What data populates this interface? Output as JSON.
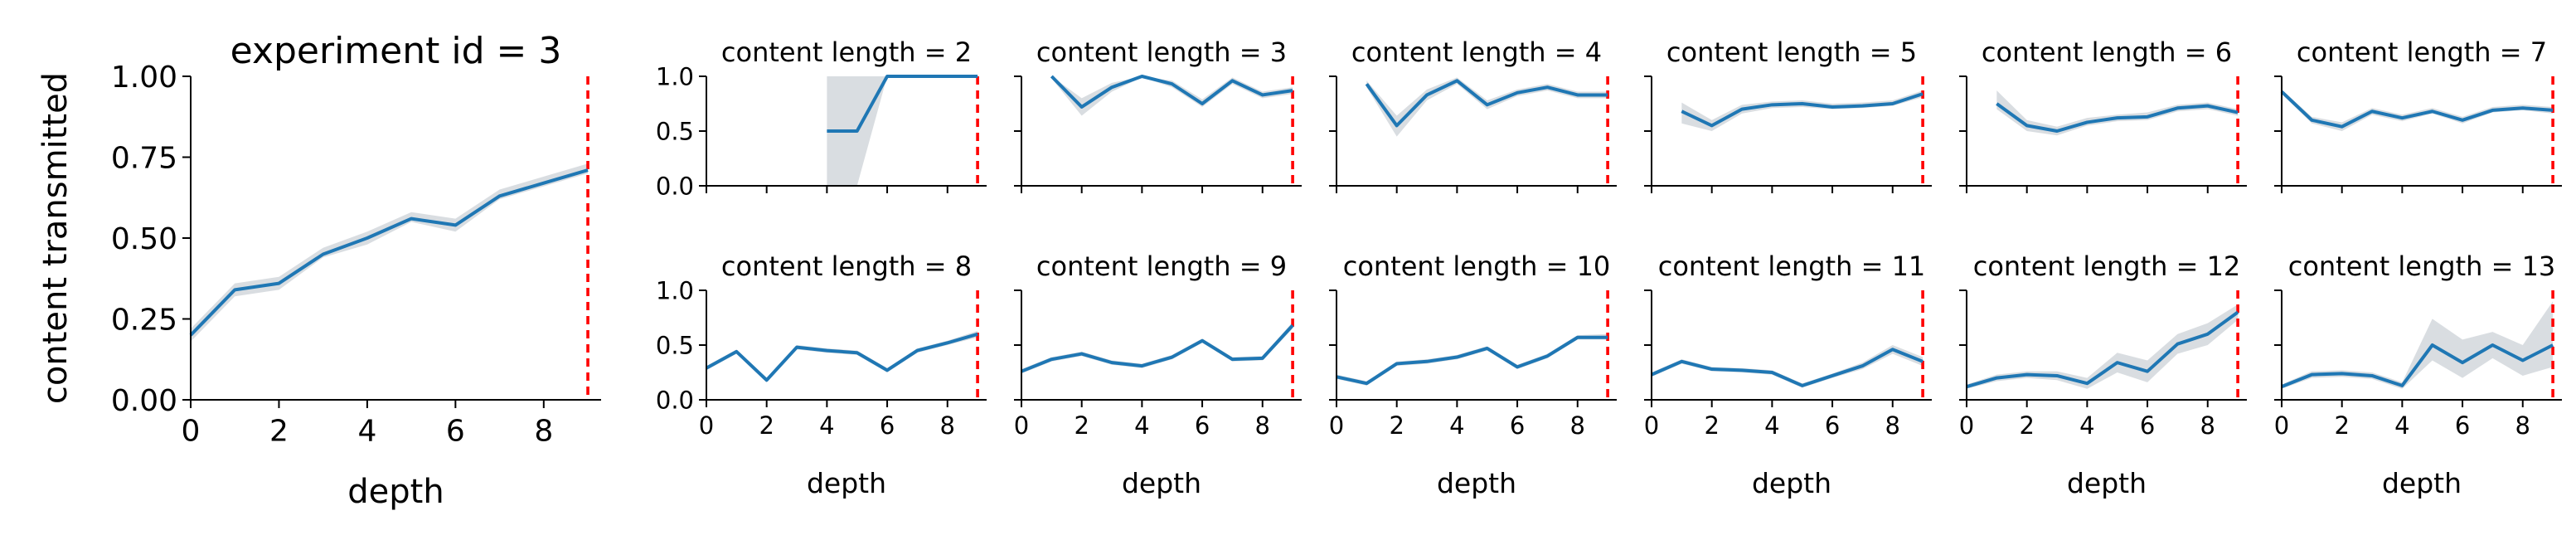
{
  "chart_data": [
    {
      "id": "main",
      "type": "line",
      "title": "experiment id = 3",
      "xlabel": "depth",
      "ylabel": "content transmitted",
      "xlim": [
        0,
        9.3
      ],
      "ylim": [
        0,
        1
      ],
      "xticks": [
        0,
        2,
        4,
        6,
        8
      ],
      "yticks": [
        0.0,
        0.25,
        0.5,
        0.75,
        1.0
      ],
      "ytick_labels": [
        "0.00",
        "0.25",
        "0.50",
        "0.75",
        "1.00"
      ],
      "vline": 9,
      "x": [
        0,
        1,
        2,
        3,
        4,
        5,
        6,
        7,
        8,
        9
      ],
      "values": [
        0.2,
        0.34,
        0.36,
        0.45,
        0.5,
        0.56,
        0.54,
        0.63,
        0.67,
        0.71
      ],
      "ci_low": [
        0.18,
        0.32,
        0.34,
        0.44,
        0.48,
        0.55,
        0.52,
        0.62,
        0.66,
        0.7
      ],
      "ci_high": [
        0.22,
        0.36,
        0.38,
        0.47,
        0.52,
        0.58,
        0.56,
        0.65,
        0.69,
        0.73
      ]
    },
    {
      "id": "cl2",
      "type": "line",
      "title": "content length = 2",
      "xlabel": "",
      "ylim": [
        0,
        1
      ],
      "xlim": [
        0,
        9.3
      ],
      "vline": 9,
      "x": [
        4,
        5,
        6,
        7,
        8,
        9
      ],
      "values": [
        0.5,
        0.5,
        1.0,
        1.0,
        1.0,
        1.0
      ],
      "ci_low": [
        0.0,
        0.0,
        1.0,
        1.0,
        1.0,
        1.0
      ],
      "ci_high": [
        1.0,
        1.0,
        1.0,
        1.0,
        1.0,
        1.0
      ]
    },
    {
      "id": "cl3",
      "type": "line",
      "title": "content length = 3",
      "xlabel": "",
      "ylim": [
        0,
        1
      ],
      "xlim": [
        0,
        9.3
      ],
      "vline": 9,
      "x": [
        1,
        2,
        3,
        4,
        5,
        6,
        7,
        8,
        9
      ],
      "values": [
        1.0,
        0.72,
        0.9,
        1.0,
        0.93,
        0.75,
        0.96,
        0.83,
        0.87
      ],
      "ci_low": [
        0.98,
        0.64,
        0.86,
        0.99,
        0.9,
        0.72,
        0.93,
        0.8,
        0.84
      ],
      "ci_high": [
        1.0,
        0.8,
        0.94,
        1.0,
        0.96,
        0.79,
        0.99,
        0.86,
        0.9
      ]
    },
    {
      "id": "cl4",
      "type": "line",
      "title": "content length = 4",
      "xlabel": "",
      "ylim": [
        0,
        1
      ],
      "xlim": [
        0,
        9.3
      ],
      "vline": 9,
      "x": [
        1,
        2,
        3,
        4,
        5,
        6,
        7,
        8,
        9
      ],
      "values": [
        0.93,
        0.55,
        0.83,
        0.96,
        0.74,
        0.85,
        0.9,
        0.83,
        0.83
      ],
      "ci_low": [
        0.9,
        0.45,
        0.78,
        0.93,
        0.7,
        0.82,
        0.87,
        0.8,
        0.8
      ],
      "ci_high": [
        0.96,
        0.64,
        0.88,
        0.99,
        0.78,
        0.88,
        0.93,
        0.86,
        0.86
      ]
    },
    {
      "id": "cl5",
      "type": "line",
      "title": "content length = 5",
      "xlabel": "",
      "ylim": [
        0,
        1
      ],
      "xlim": [
        0,
        9.3
      ],
      "vline": 9,
      "x": [
        1,
        2,
        3,
        4,
        5,
        6,
        7,
        8,
        9
      ],
      "values": [
        0.68,
        0.55,
        0.7,
        0.74,
        0.75,
        0.72,
        0.73,
        0.75,
        0.84
      ],
      "ci_low": [
        0.57,
        0.5,
        0.66,
        0.71,
        0.72,
        0.7,
        0.71,
        0.73,
        0.81
      ],
      "ci_high": [
        0.76,
        0.6,
        0.74,
        0.77,
        0.78,
        0.75,
        0.76,
        0.78,
        0.87
      ]
    },
    {
      "id": "cl6",
      "type": "line",
      "title": "content length = 6",
      "xlabel": "",
      "ylim": [
        0,
        1
      ],
      "xlim": [
        0,
        9.3
      ],
      "vline": 9,
      "x": [
        1,
        2,
        3,
        4,
        5,
        6,
        7,
        8,
        9
      ],
      "values": [
        0.75,
        0.55,
        0.5,
        0.58,
        0.62,
        0.63,
        0.71,
        0.73,
        0.67
      ],
      "ci_low": [
        0.7,
        0.5,
        0.46,
        0.55,
        0.59,
        0.6,
        0.68,
        0.7,
        0.64
      ],
      "ci_high": [
        0.87,
        0.6,
        0.54,
        0.62,
        0.65,
        0.67,
        0.74,
        0.76,
        0.7
      ]
    },
    {
      "id": "cl7",
      "type": "line",
      "title": "content length = 7",
      "xlabel": "",
      "ylim": [
        0,
        1
      ],
      "xlim": [
        0,
        9.3
      ],
      "vline": 9,
      "x": [
        0,
        1,
        2,
        3,
        4,
        5,
        6,
        7,
        8,
        9
      ],
      "values": [
        0.86,
        0.6,
        0.54,
        0.68,
        0.62,
        0.68,
        0.6,
        0.69,
        0.71,
        0.69
      ],
      "ci_low": [
        0.84,
        0.57,
        0.5,
        0.65,
        0.59,
        0.66,
        0.57,
        0.67,
        0.69,
        0.66
      ],
      "ci_high": [
        0.88,
        0.63,
        0.58,
        0.71,
        0.65,
        0.71,
        0.63,
        0.72,
        0.74,
        0.72
      ]
    },
    {
      "id": "cl8",
      "type": "line",
      "title": "content length = 8",
      "xlabel": "depth",
      "ylim": [
        0,
        1
      ],
      "xlim": [
        0,
        9.3
      ],
      "vline": 9,
      "x": [
        0,
        1,
        2,
        3,
        4,
        5,
        6,
        7,
        8,
        9
      ],
      "values": [
        0.29,
        0.44,
        0.18,
        0.48,
        0.45,
        0.43,
        0.27,
        0.45,
        0.52,
        0.6
      ],
      "ci_low": [
        0.27,
        0.42,
        0.16,
        0.46,
        0.43,
        0.41,
        0.25,
        0.43,
        0.5,
        0.57
      ],
      "ci_high": [
        0.31,
        0.46,
        0.2,
        0.5,
        0.47,
        0.45,
        0.29,
        0.47,
        0.54,
        0.63
      ]
    },
    {
      "id": "cl9",
      "type": "line",
      "title": "content length = 9",
      "xlabel": "depth",
      "ylim": [
        0,
        1
      ],
      "xlim": [
        0,
        9.3
      ],
      "vline": 9,
      "x": [
        0,
        1,
        2,
        3,
        4,
        5,
        6,
        7,
        8,
        9
      ],
      "values": [
        0.26,
        0.37,
        0.42,
        0.34,
        0.31,
        0.39,
        0.54,
        0.37,
        0.38,
        0.68
      ],
      "ci_low": [
        0.24,
        0.35,
        0.4,
        0.32,
        0.29,
        0.37,
        0.52,
        0.35,
        0.36,
        0.65
      ],
      "ci_high": [
        0.28,
        0.39,
        0.44,
        0.36,
        0.33,
        0.41,
        0.56,
        0.39,
        0.4,
        0.71
      ]
    },
    {
      "id": "cl10",
      "type": "line",
      "title": "content length = 10",
      "xlabel": "depth",
      "ylim": [
        0,
        1
      ],
      "xlim": [
        0,
        9.3
      ],
      "vline": 9,
      "x": [
        0,
        1,
        2,
        3,
        4,
        5,
        6,
        7,
        8,
        9
      ],
      "values": [
        0.21,
        0.15,
        0.33,
        0.35,
        0.39,
        0.47,
        0.3,
        0.4,
        0.57,
        0.57
      ],
      "ci_low": [
        0.19,
        0.13,
        0.31,
        0.33,
        0.37,
        0.45,
        0.28,
        0.38,
        0.55,
        0.55
      ],
      "ci_high": [
        0.23,
        0.17,
        0.35,
        0.37,
        0.41,
        0.49,
        0.32,
        0.42,
        0.59,
        0.6
      ]
    },
    {
      "id": "cl11",
      "type": "line",
      "title": "content length = 11",
      "xlabel": "depth",
      "ylim": [
        0,
        1
      ],
      "xlim": [
        0,
        9.3
      ],
      "vline": 9,
      "x": [
        0,
        1,
        2,
        3,
        4,
        5,
        6,
        7,
        8,
        9
      ],
      "values": [
        0.23,
        0.35,
        0.28,
        0.27,
        0.25,
        0.13,
        0.22,
        0.31,
        0.46,
        0.35
      ],
      "ci_low": [
        0.21,
        0.33,
        0.26,
        0.25,
        0.23,
        0.11,
        0.2,
        0.28,
        0.42,
        0.31
      ],
      "ci_high": [
        0.25,
        0.37,
        0.3,
        0.29,
        0.27,
        0.15,
        0.24,
        0.34,
        0.5,
        0.39
      ]
    },
    {
      "id": "cl12",
      "type": "line",
      "title": "content length = 12",
      "xlabel": "depth",
      "ylim": [
        0,
        1
      ],
      "xlim": [
        0,
        9.3
      ],
      "vline": 9,
      "x": [
        0,
        1,
        2,
        3,
        4,
        5,
        6,
        7,
        8,
        9
      ],
      "values": [
        0.12,
        0.2,
        0.23,
        0.22,
        0.15,
        0.34,
        0.26,
        0.51,
        0.6,
        0.8
      ],
      "ci_low": [
        0.1,
        0.17,
        0.2,
        0.18,
        0.1,
        0.25,
        0.16,
        0.42,
        0.5,
        0.73
      ],
      "ci_high": [
        0.14,
        0.23,
        0.26,
        0.26,
        0.2,
        0.43,
        0.36,
        0.6,
        0.7,
        0.87
      ]
    },
    {
      "id": "cl13",
      "type": "line",
      "title": "content length = 13",
      "xlabel": "depth",
      "ylim": [
        0,
        1
      ],
      "xlim": [
        0,
        9.3
      ],
      "vline": 9,
      "x": [
        0,
        1,
        2,
        3,
        4,
        5,
        6,
        7,
        8,
        9
      ],
      "values": [
        0.12,
        0.23,
        0.24,
        0.22,
        0.13,
        0.5,
        0.34,
        0.5,
        0.36,
        0.5
      ],
      "ci_low": [
        0.1,
        0.2,
        0.21,
        0.19,
        0.1,
        0.36,
        0.2,
        0.38,
        0.22,
        0.3
      ],
      "ci_high": [
        0.14,
        0.26,
        0.27,
        0.25,
        0.16,
        0.74,
        0.55,
        0.62,
        0.5,
        0.9
      ]
    }
  ],
  "small_xticks": [
    0,
    2,
    4,
    6,
    8
  ],
  "small_yticks": [
    0.0,
    0.5,
    1.0
  ],
  "small_ytick_labels": [
    "0.0",
    "0.5",
    "1.0"
  ],
  "colors": {
    "line": "#1f77b4",
    "band": "#d9dde1",
    "vline": "#ff0000",
    "axis": "#000000"
  }
}
